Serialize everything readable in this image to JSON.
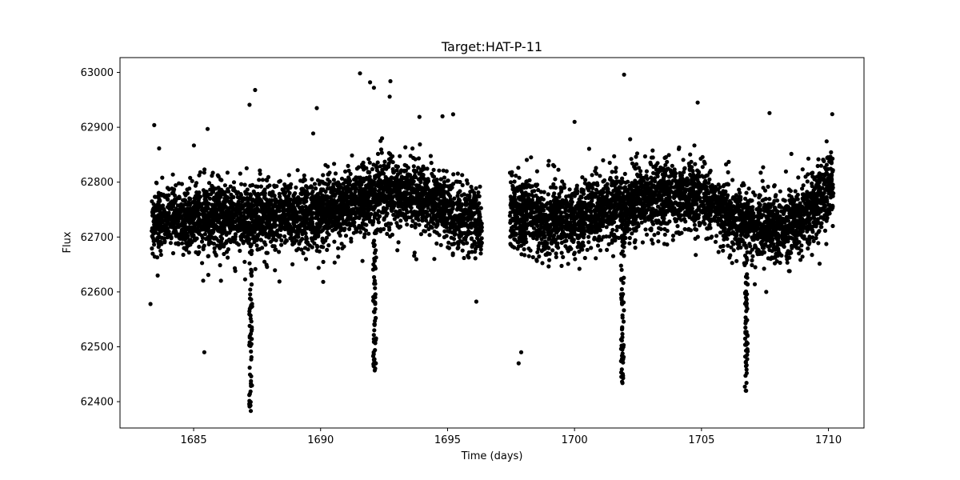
{
  "chart_data": {
    "type": "scatter",
    "title": "Target:HAT-P-11",
    "xlabel": "Time (days)",
    "ylabel": "Flux",
    "xlim": [
      1682.1,
      1711.4
    ],
    "ylim": [
      62352,
      63027
    ],
    "xticks": [
      1685,
      1690,
      1695,
      1700,
      1705,
      1710
    ],
    "yticks": [
      62400,
      62500,
      62600,
      62700,
      62800,
      62900,
      63000
    ],
    "grid": false,
    "legend": "none",
    "marker_color": "#000000",
    "observing_segments": [
      [
        1683.35,
        1696.35
      ],
      [
        1697.45,
        1710.2
      ]
    ],
    "baseline_trend": [
      {
        "x": 1683.4,
        "y": 62730
      },
      {
        "x": 1685,
        "y": 62735
      },
      {
        "x": 1687,
        "y": 62738
      },
      {
        "x": 1689,
        "y": 62740
      },
      {
        "x": 1691,
        "y": 62755
      },
      {
        "x": 1692.5,
        "y": 62785
      },
      {
        "x": 1694,
        "y": 62770
      },
      {
        "x": 1695.5,
        "y": 62740
      },
      {
        "x": 1696.3,
        "y": 62725
      },
      {
        "x": 1697.5,
        "y": 62750
      },
      {
        "x": 1699,
        "y": 62725
      },
      {
        "x": 1700.5,
        "y": 62740
      },
      {
        "x": 1702,
        "y": 62760
      },
      {
        "x": 1703.5,
        "y": 62775
      },
      {
        "x": 1705,
        "y": 62770
      },
      {
        "x": 1706.5,
        "y": 62730
      },
      {
        "x": 1708,
        "y": 62715
      },
      {
        "x": 1709.3,
        "y": 62745
      },
      {
        "x": 1710.1,
        "y": 62790
      }
    ],
    "transits": [
      {
        "time": 1687.25,
        "min_flux": 62383
      },
      {
        "time": 1692.13,
        "min_flux": 62457
      },
      {
        "time": 1701.89,
        "min_flux": 62434
      },
      {
        "time": 1706.76,
        "min_flux": 62420
      }
    ],
    "outliers": [
      {
        "x": 1683.45,
        "y": 62904
      },
      {
        "x": 1685.42,
        "y": 62490
      },
      {
        "x": 1685.55,
        "y": 62897
      },
      {
        "x": 1687.2,
        "y": 62941
      },
      {
        "x": 1687.42,
        "y": 62968
      },
      {
        "x": 1689.85,
        "y": 62935
      },
      {
        "x": 1691.95,
        "y": 62982
      },
      {
        "x": 1692.1,
        "y": 62972
      },
      {
        "x": 1692.75,
        "y": 62984
      },
      {
        "x": 1694.8,
        "y": 62920
      },
      {
        "x": 1697.8,
        "y": 62470
      },
      {
        "x": 1697.9,
        "y": 62490
      },
      {
        "x": 1700.0,
        "y": 62910
      },
      {
        "x": 1701.95,
        "y": 62996
      },
      {
        "x": 1704.85,
        "y": 62945
      },
      {
        "x": 1707.68,
        "y": 62926
      },
      {
        "x": 1710.15,
        "y": 62924
      },
      {
        "x": 1707.1,
        "y": 62614
      },
      {
        "x": 1707.55,
        "y": 62600
      },
      {
        "x": 1683.3,
        "y": 62578
      }
    ]
  }
}
